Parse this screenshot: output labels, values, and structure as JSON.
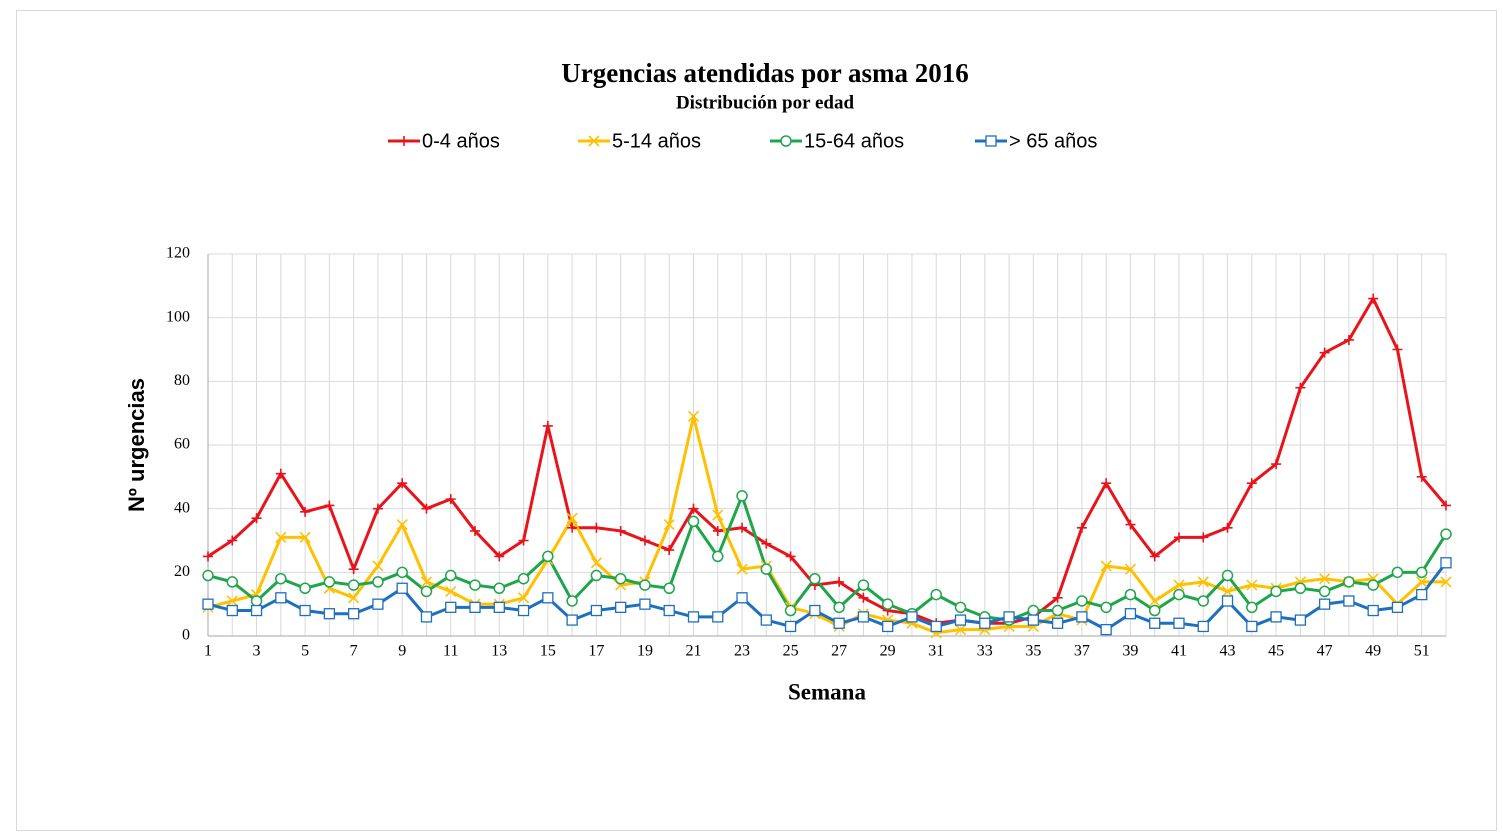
{
  "chart_data": {
    "type": "line",
    "title": "Urgencias atendidas por asma 2016",
    "subtitle": "Distribución por edad",
    "x_label": "Semana",
    "y_label": "Nº urgencias",
    "categories": [
      1,
      null,
      3,
      null,
      5,
      null,
      7,
      null,
      9,
      null,
      11,
      null,
      13,
      null,
      15,
      null,
      17,
      null,
      19,
      null,
      21,
      null,
      23,
      null,
      25,
      null,
      27,
      null,
      29,
      null,
      31,
      null,
      33,
      null,
      35,
      null,
      37,
      null,
      39,
      null,
      41,
      null,
      43,
      null,
      45,
      null,
      47,
      null,
      49,
      null,
      51,
      null
    ],
    "ylim": [
      0,
      120
    ],
    "yticks": [
      0,
      20,
      40,
      60,
      80,
      100,
      120
    ],
    "grid": true,
    "legend": "top",
    "series": [
      {
        "name": "0-4 años",
        "color": "#e8141c",
        "marker": "plus",
        "values": [
          25,
          30,
          37,
          51,
          39,
          41,
          21,
          40,
          48,
          40,
          43,
          33,
          25,
          30,
          66,
          34,
          34,
          33,
          30,
          27,
          40,
          33,
          34,
          29,
          25,
          16,
          17,
          12,
          8,
          7,
          4,
          5,
          4,
          4,
          6,
          12,
          34,
          48,
          35,
          25,
          31,
          31,
          34,
          48,
          54,
          78,
          89,
          93,
          106,
          90,
          50,
          41
        ]
      },
      {
        "name": "5-14 años",
        "color": "#ffc000",
        "marker": "cross",
        "values": [
          9,
          11,
          13,
          31,
          31,
          15,
          12,
          22,
          35,
          17,
          14,
          10,
          10,
          12,
          24,
          37,
          23,
          16,
          17,
          35,
          69,
          38,
          21,
          22,
          9,
          7,
          3,
          7,
          5,
          4,
          1,
          2,
          2,
          3,
          3,
          7,
          5,
          22,
          21,
          11,
          16,
          17,
          14,
          16,
          15,
          17,
          18,
          17,
          18,
          10,
          17,
          17
        ]
      },
      {
        "name": "15-64 años",
        "color": "#1fa54a",
        "marker": "circle",
        "values": [
          19,
          17,
          11,
          18,
          15,
          17,
          16,
          17,
          20,
          14,
          19,
          16,
          15,
          18,
          25,
          11,
          19,
          18,
          16,
          15,
          36,
          25,
          44,
          21,
          8,
          18,
          9,
          16,
          10,
          7,
          13,
          9,
          6,
          5,
          8,
          8,
          11,
          9,
          13,
          8,
          13,
          11,
          19,
          9,
          14,
          15,
          14,
          17,
          16,
          20,
          20,
          32
        ]
      },
      {
        "name": "> 65 años",
        "color": "#1f6fbf",
        "marker": "square",
        "values": [
          10,
          8,
          8,
          12,
          8,
          7,
          7,
          10,
          15,
          6,
          9,
          9,
          9,
          8,
          12,
          5,
          8,
          9,
          10,
          8,
          6,
          6,
          12,
          5,
          3,
          8,
          4,
          6,
          3,
          6,
          3,
          5,
          4,
          6,
          5,
          4,
          6,
          2,
          7,
          4,
          4,
          3,
          11,
          3,
          6,
          5,
          10,
          11,
          8,
          9,
          13,
          23
        ]
      }
    ]
  }
}
